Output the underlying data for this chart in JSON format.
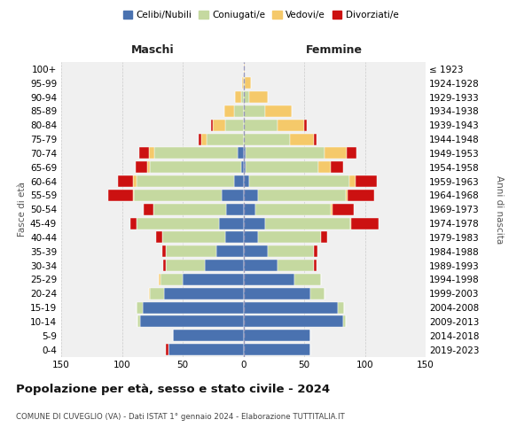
{
  "age_groups": [
    "0-4",
    "5-9",
    "10-14",
    "15-19",
    "20-24",
    "25-29",
    "30-34",
    "35-39",
    "40-44",
    "45-49",
    "50-54",
    "55-59",
    "60-64",
    "65-69",
    "70-74",
    "75-79",
    "80-84",
    "85-89",
    "90-94",
    "95-99",
    "100+"
  ],
  "birth_years": [
    "2019-2023",
    "2014-2018",
    "2009-2013",
    "2004-2008",
    "1999-2003",
    "1994-1998",
    "1989-1993",
    "1984-1988",
    "1979-1983",
    "1974-1978",
    "1969-1973",
    "1964-1968",
    "1959-1963",
    "1954-1958",
    "1949-1953",
    "1944-1948",
    "1939-1943",
    "1934-1938",
    "1929-1933",
    "1924-1928",
    "≤ 1923"
  ],
  "male": {
    "celibi": [
      62,
      58,
      85,
      83,
      65,
      50,
      32,
      22,
      15,
      20,
      14,
      18,
      8,
      2,
      5,
      0,
      0,
      0,
      0,
      0,
      0
    ],
    "coniugati": [
      0,
      0,
      2,
      5,
      12,
      18,
      32,
      42,
      52,
      68,
      60,
      72,
      80,
      75,
      68,
      30,
      15,
      8,
      2,
      0,
      0
    ],
    "vedovi": [
      0,
      0,
      0,
      0,
      1,
      2,
      0,
      0,
      0,
      0,
      0,
      1,
      3,
      2,
      5,
      5,
      10,
      8,
      5,
      1,
      0
    ],
    "divorziati": [
      2,
      0,
      0,
      0,
      0,
      0,
      2,
      3,
      5,
      5,
      8,
      20,
      12,
      10,
      8,
      2,
      2,
      0,
      0,
      0,
      0
    ]
  },
  "female": {
    "nubili": [
      55,
      55,
      82,
      78,
      55,
      42,
      28,
      20,
      12,
      18,
      10,
      12,
      5,
      2,
      2,
      0,
      0,
      0,
      0,
      0,
      0
    ],
    "coniugate": [
      0,
      0,
      2,
      5,
      12,
      22,
      30,
      38,
      52,
      70,
      62,
      72,
      82,
      60,
      65,
      38,
      28,
      18,
      5,
      1,
      0
    ],
    "vedove": [
      0,
      0,
      0,
      0,
      0,
      0,
      0,
      0,
      0,
      1,
      1,
      2,
      5,
      10,
      18,
      20,
      22,
      22,
      15,
      5,
      1
    ],
    "divorziate": [
      0,
      0,
      0,
      0,
      0,
      0,
      2,
      3,
      5,
      22,
      18,
      22,
      18,
      10,
      8,
      2,
      2,
      0,
      0,
      0,
      0
    ]
  },
  "colors": {
    "celibi": "#4a72b0",
    "coniugati": "#c5d9a0",
    "vedovi": "#f5c96a",
    "divorziati": "#cc1111"
  },
  "xlim": 150,
  "title": "Popolazione per età, sesso e stato civile - 2024",
  "subtitle": "COMUNE DI CUVEGLIO (VA) - Dati ISTAT 1° gennaio 2024 - Elaborazione TUTTITALIA.IT",
  "ylabel_left": "Fasce di età",
  "ylabel_right": "Anni di nascita",
  "xlabel_left": "Maschi",
  "xlabel_right": "Femmine",
  "bg_color": "#f0f0f0"
}
